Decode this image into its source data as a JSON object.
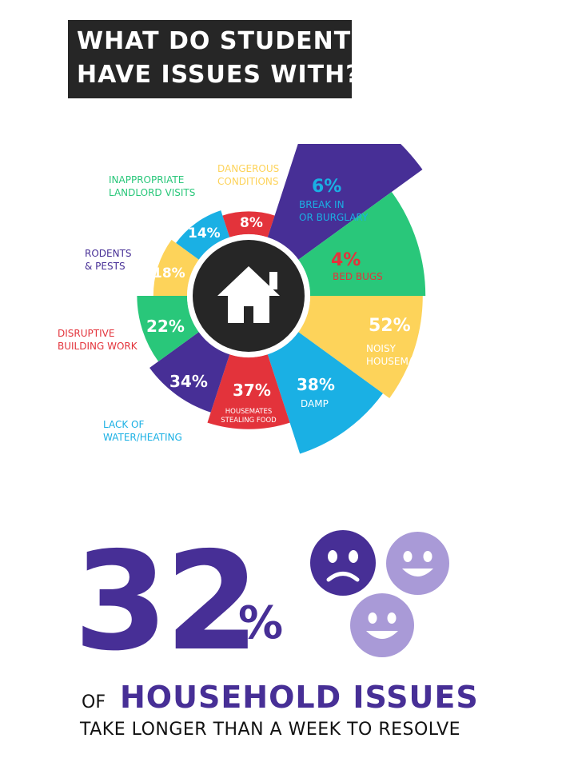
{
  "title": {
    "line1": "WHAT DO STUDENTS",
    "line2": "HAVE ISSUES WITH?"
  },
  "chart_data": {
    "type": "pie",
    "subtype": "polar-area",
    "center_icon": "house-icon",
    "slices": [
      {
        "pct_label": "6%",
        "value": 6,
        "name_lines": [
          "BREAK IN",
          "OR BURGLARY"
        ],
        "color": "#1ab0e4"
      },
      {
        "pct_label": "4%",
        "value": 4,
        "name_lines": [
          "BED BUGS"
        ],
        "color": "#e3333b"
      },
      {
        "pct_label": "52%",
        "value": 52,
        "name_lines": [
          "NOISY",
          "HOUSEMATES"
        ],
        "color": "#472f96"
      },
      {
        "pct_label": "38%",
        "value": 38,
        "name_lines": [
          "DAMP"
        ],
        "color": "#29c77a"
      },
      {
        "pct_label": "37%",
        "value": 37,
        "name_lines": [
          "HOUSEMATES",
          "STEALING FOOD"
        ],
        "color": "#fdd35a"
      },
      {
        "pct_label": "34%",
        "value": 34,
        "name_lines": [
          "LACK OF",
          "WATER/HEATING"
        ],
        "color": "#1ab0e4"
      },
      {
        "pct_label": "22%",
        "value": 22,
        "name_lines": [
          "DISRUPTIVE",
          "BUILDING WORK"
        ],
        "color": "#e3333b"
      },
      {
        "pct_label": "18%",
        "value": 18,
        "name_lines": [
          "RODENTS",
          "& PESTS"
        ],
        "color": "#472f96"
      },
      {
        "pct_label": "14%",
        "value": 14,
        "name_lines": [
          "INAPPROPRIATE",
          "LANDLORD VISITS"
        ],
        "color": "#29c77a"
      },
      {
        "pct_label": "8%",
        "value": 8,
        "name_lines": [
          "DANGEROUS",
          "CONDITIONS"
        ],
        "color": "#fdd35a"
      }
    ]
  },
  "stat": {
    "number": "32",
    "percent_sign": "%",
    "of": "OF",
    "headline": "HOUSEHOLD ISSUES",
    "subline": "TAKE LONGER THAN A WEEK TO RESOLVE",
    "faces": [
      {
        "icon": "sad-face-icon",
        "color": "#472f96"
      },
      {
        "icon": "happy-face-icon",
        "color": "#a99ad7"
      },
      {
        "icon": "happy-face-icon",
        "color": "#a99ad7"
      }
    ]
  }
}
